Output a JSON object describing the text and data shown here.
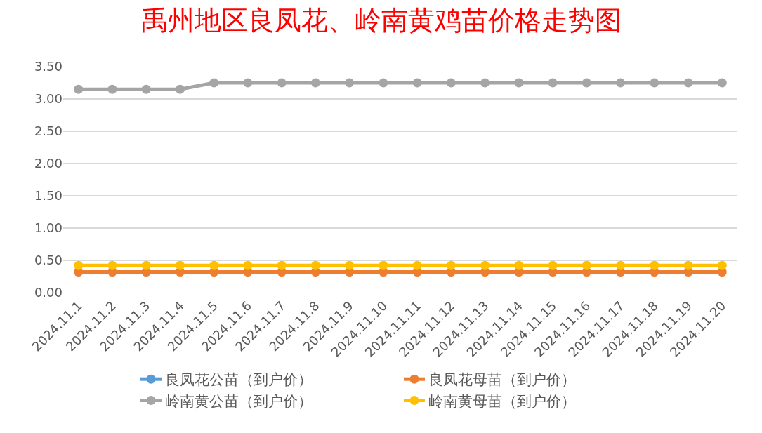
{
  "chart_data": {
    "type": "line",
    "title": "禹州地区良凤花、岭南黄鸡苗价格走势图",
    "categories": [
      "2024.11.1",
      "2024.11.2",
      "2024.11.3",
      "2024.11.4",
      "2024.11.5",
      "2024.11.6",
      "2024.11.7",
      "2024.11.8",
      "2024.11.9",
      "2024.11.10",
      "2024.11.11",
      "2024.11.12",
      "2024.11.13",
      "2024.11.14",
      "2024.11.15",
      "2024.11.16",
      "2024.11.17",
      "2024.11.18",
      "2024.11.19",
      "2024.11.20"
    ],
    "series": [
      {
        "name": "良凤花公苗（到户价）",
        "color": "#5b9bd5",
        "values": [
          null,
          null,
          null,
          null,
          null,
          null,
          null,
          null,
          null,
          null,
          null,
          null,
          null,
          null,
          null,
          null,
          null,
          null,
          null,
          null
        ]
      },
      {
        "name": "良凤花母苗（到户价）",
        "color": "#ed7d31",
        "values": [
          0.32,
          0.32,
          0.32,
          0.32,
          0.32,
          0.32,
          0.32,
          0.32,
          0.32,
          0.32,
          0.32,
          0.32,
          0.32,
          0.32,
          0.32,
          0.32,
          0.32,
          0.32,
          0.32,
          0.32
        ]
      },
      {
        "name": "岭南黄公苗（到户价）",
        "color": "#a5a5a5",
        "values": [
          3.15,
          3.15,
          3.15,
          3.15,
          3.25,
          3.25,
          3.25,
          3.25,
          3.25,
          3.25,
          3.25,
          3.25,
          3.25,
          3.25,
          3.25,
          3.25,
          3.25,
          3.25,
          3.25,
          3.25
        ]
      },
      {
        "name": "岭南黄母苗（到户价）",
        "color": "#ffc000",
        "values": [
          0.42,
          0.42,
          0.42,
          0.42,
          0.42,
          0.42,
          0.42,
          0.42,
          0.42,
          0.42,
          0.42,
          0.42,
          0.42,
          0.42,
          0.42,
          0.42,
          0.42,
          0.42,
          0.42,
          0.42
        ]
      }
    ],
    "ylim": [
      0,
      3.5
    ],
    "yticks": [
      {
        "value": 0,
        "label": "0.00"
      },
      {
        "value": 0.5,
        "label": "0.50"
      },
      {
        "value": 1,
        "label": "1.00"
      },
      {
        "value": 1.5,
        "label": "1.50"
      },
      {
        "value": 2,
        "label": "2.00"
      },
      {
        "value": 2.5,
        "label": "2.50"
      },
      {
        "value": 3,
        "label": "3.00"
      },
      {
        "value": 3.5,
        "label": "3.50"
      }
    ],
    "grid": "y",
    "legend": "bottom",
    "marker": "circle",
    "line_style": "solid"
  }
}
